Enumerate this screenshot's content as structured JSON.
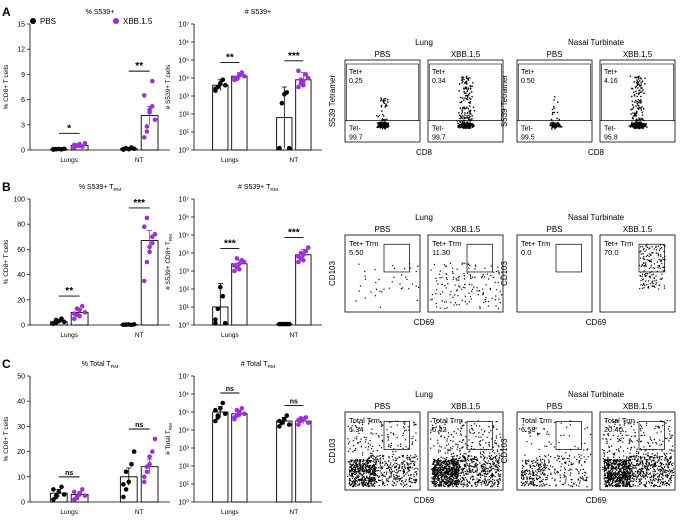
{
  "colors": {
    "pbs": "#000000",
    "xbb": "#9b30d9",
    "gate": "#000000"
  },
  "legend": {
    "pbs": "PBS",
    "xbb": "XBB.1.5"
  },
  "panels": [
    {
      "letter": "A",
      "bar_linear": {
        "title": "% S539+",
        "ylabel": "% CD8+ T cells",
        "ylim": [
          0,
          15
        ],
        "ticks": [
          "0",
          "3",
          "6",
          "9",
          "12",
          "15"
        ],
        "tick_values": [
          0,
          3,
          6,
          9,
          12,
          15
        ],
        "categories": [
          "Lungs",
          "NT"
        ],
        "pbs_means": [
          0.1,
          0.15
        ],
        "xbb_means": [
          0.55,
          4.1
        ],
        "pbs_err": [
          0.05,
          0.1
        ],
        "xbb_err": [
          0.15,
          1.1
        ],
        "pbs_points": [
          [
            0.05,
            0.1,
            0.12,
            0.08,
            0.15,
            0.1
          ],
          [
            0.05,
            0.2,
            0.1,
            0.3,
            0.15,
            0.12,
            0.18
          ]
        ],
        "xbb_points": [
          [
            0.3,
            0.5,
            0.7,
            0.4,
            0.8,
            0.6,
            0.55,
            0.5
          ],
          [
            1.5,
            2.8,
            4.5,
            5.2,
            3.6,
            6.5,
            2.2,
            4.8,
            8.2
          ]
        ],
        "sig": [
          "*",
          "**"
        ]
      },
      "bar_log": {
        "title": "# S539+",
        "ylabel": "# S539+ T cells",
        "ylim_exp": [
          0,
          7
        ],
        "ticks": [
          "10⁰",
          "10¹",
          "10²",
          "10³",
          "10⁴",
          "10⁵",
          "10⁶",
          "10⁷"
        ],
        "categories": [
          "Lungs",
          "NT"
        ],
        "pbs_means": [
          3.6,
          1.8
        ],
        "xbb_means": [
          4.1,
          3.9
        ],
        "pbs_err": [
          0.3,
          1.7
        ],
        "xbb_err": [
          0.2,
          0.4
        ],
        "pbs_points": [
          [
            3.3,
            3.5,
            3.7,
            3.9,
            3.6,
            3.4
          ],
          [
            0.1,
            2.6,
            3.1,
            3.2,
            0.1,
            0.1
          ]
        ],
        "xbb_points": [
          [
            3.9,
            4.0,
            4.2,
            4.3,
            4.1,
            4.0,
            3.95,
            4.15
          ],
          [
            3.5,
            3.7,
            3.8,
            4.2,
            4.0,
            4.4,
            3.9,
            3.6
          ]
        ],
        "sig": [
          "**",
          "***"
        ]
      },
      "flow": {
        "ylabel": "S539 Tetramer",
        "xlabel": "CD8",
        "gate": "horizontal",
        "groups": [
          {
            "title": "Lung",
            "plots": [
              {
                "label": "PBS",
                "g1": "Tet+",
                "v1": "0.25",
                "g2": "Tet-",
                "v2": "99.7"
              },
              {
                "label": "XBB.1.5",
                "g1": "Tet+",
                "v1": "0.34",
                "g2": "Tet-",
                "v2": "99.7"
              }
            ]
          },
          {
            "title": "Nasal Turbinate",
            "plots": [
              {
                "label": "PBS",
                "g1": "Tet+",
                "v1": "0.50",
                "g2": "Tet-",
                "v2": "99.5"
              },
              {
                "label": "XBB.1.5",
                "g1": "Tet+",
                "v1": "4.16",
                "g2": "Tet-",
                "v2": "95.8"
              }
            ]
          }
        ]
      }
    },
    {
      "letter": "B",
      "bar_linear": {
        "title": "% S539+ T",
        "title_sub": "RM",
        "ylabel": "% CD8+ T cells",
        "ylim": [
          0,
          100
        ],
        "ticks": [
          "0",
          "20",
          "40",
          "60",
          "80",
          "100"
        ],
        "tick_values": [
          0,
          20,
          40,
          60,
          80,
          100
        ],
        "categories": [
          "Lungs",
          "NT"
        ],
        "pbs_means": [
          2.5,
          0.3
        ],
        "xbb_means": [
          10,
          67
        ],
        "pbs_err": [
          1,
          0.2
        ],
        "xbb_err": [
          2,
          8
        ],
        "pbs_points": [
          [
            1,
            2,
            3,
            5,
            2.5,
            1.5,
            4
          ],
          [
            0.2,
            0.3,
            0.4,
            0.1,
            0.5,
            0.2,
            0.3
          ]
        ],
        "xbb_points": [
          [
            5,
            8,
            12,
            15,
            10,
            9,
            13,
            7
          ],
          [
            35,
            50,
            62,
            70,
            72,
            78,
            85,
            58,
            65
          ]
        ],
        "sig": [
          "**",
          "***"
        ]
      },
      "bar_log": {
        "title": "# S539+ T",
        "title_sub": "RM",
        "ylabel": "# S539+ CD8+ T",
        "ylabel_sub": "RM",
        "ylim_exp": [
          0,
          7
        ],
        "ticks": [
          "10⁰",
          "10¹",
          "10²",
          "10³",
          "10⁴",
          "10⁵",
          "10⁶",
          "10⁷"
        ],
        "categories": [
          "Lungs",
          "NT"
        ],
        "pbs_means": [
          1.0,
          0.05
        ],
        "xbb_means": [
          3.4,
          3.9
        ],
        "pbs_err": [
          1.3,
          0.05
        ],
        "xbb_err": [
          0.2,
          0.3
        ],
        "pbs_points": [
          [
            0.1,
            0.9,
            2.1,
            1.6,
            0.1,
            0.3
          ],
          [
            0.05,
            0.05,
            0.05,
            0.05,
            0.05
          ]
        ],
        "xbb_points": [
          [
            3.0,
            3.2,
            3.4,
            3.6,
            3.5,
            3.3,
            3.7,
            3.1
          ],
          [
            3.5,
            3.7,
            3.9,
            4.1,
            4.3,
            3.8,
            4.0,
            3.6
          ]
        ],
        "sig": [
          "***",
          "***"
        ]
      },
      "flow": {
        "ylabel": "CD103",
        "xlabel": "CD69",
        "gate": "box",
        "groups": [
          {
            "title": "Lung",
            "plots": [
              {
                "label": "PBS",
                "g1": "Tet+ Trm",
                "v1": "5.50"
              },
              {
                "label": "XBB.1.5",
                "g1": "Tet+ Trm",
                "v1": "11.30"
              }
            ]
          },
          {
            "title": "Nasal Turbinate",
            "plots": [
              {
                "label": "PBS",
                "g1": "Tet+ Trm",
                "v1": "0.0"
              },
              {
                "label": "XBB.1.5",
                "g1": "Tet+ Trm",
                "v1": "70.0"
              }
            ]
          }
        ]
      }
    },
    {
      "letter": "C",
      "bar_linear": {
        "title": "% Total T",
        "title_sub": "RM",
        "ylabel": "% CD8+ T cells",
        "ylim": [
          0,
          50
        ],
        "ticks": [
          "0",
          "10",
          "20",
          "30",
          "40",
          "50"
        ],
        "tick_values": [
          0,
          10,
          20,
          30,
          40,
          50
        ],
        "categories": [
          "Lungs",
          "NT"
        ],
        "pbs_means": [
          3.5,
          10
        ],
        "xbb_means": [
          3,
          14
        ],
        "pbs_err": [
          1.5,
          3.5
        ],
        "xbb_err": [
          1,
          3
        ],
        "pbs_points": [
          [
            1,
            2,
            4,
            6,
            3,
            5,
            2.5
          ],
          [
            2,
            5,
            8,
            15,
            20,
            7,
            12
          ]
        ],
        "xbb_points": [
          [
            1,
            2,
            3,
            5,
            2.5,
            4,
            1.5,
            3.5
          ],
          [
            8,
            12,
            15,
            20,
            25,
            10,
            14,
            18
          ]
        ],
        "sig": [
          "ns",
          "ns"
        ]
      },
      "bar_log": {
        "title": "# Total T",
        "title_sub": "RM",
        "ylabel": "# Total T",
        "ylabel_sub": "RM",
        "ylim_exp": [
          0,
          7
        ],
        "ticks": [
          "10⁰",
          "10¹",
          "10²",
          "10³",
          "10⁴",
          "10⁵",
          "10⁶",
          "10⁷"
        ],
        "categories": [
          "Lungs",
          "NT"
        ],
        "pbs_means": [
          5.0,
          4.5
        ],
        "xbb_means": [
          4.9,
          4.5
        ],
        "pbs_err": [
          0.3,
          0.2
        ],
        "xbb_err": [
          0.2,
          0.15
        ],
        "pbs_points": [
          [
            4.5,
            4.8,
            5.2,
            5.5,
            4.9,
            5.1,
            4.7
          ],
          [
            4.2,
            4.4,
            4.6,
            4.8,
            4.3,
            4.5
          ]
        ],
        "xbb_points": [
          [
            4.6,
            4.8,
            5.0,
            5.2,
            4.9,
            4.7,
            5.1,
            4.85
          ],
          [
            4.3,
            4.5,
            4.6,
            4.7,
            4.4,
            4.55,
            4.65
          ]
        ],
        "sig": [
          "ns",
          "ns"
        ]
      },
      "flow": {
        "ylabel": "CD103",
        "xlabel": "CD69",
        "gate": "box",
        "groups": [
          {
            "title": "Lung",
            "plots": [
              {
                "label": "PBS",
                "g1": "Total Trm",
                "v1": "1.34"
              },
              {
                "label": "XBB.1.5",
                "g1": "Total Trm",
                "v1": "6.42"
              }
            ]
          },
          {
            "title": "Nasal Turbinate",
            "plots": [
              {
                "label": "PBS",
                "g1": "Total Trm",
                "v1": "6.58"
              },
              {
                "label": "XBB.1.5",
                "g1": "Total Trm",
                "v1": "20.40"
              }
            ]
          }
        ]
      }
    }
  ]
}
